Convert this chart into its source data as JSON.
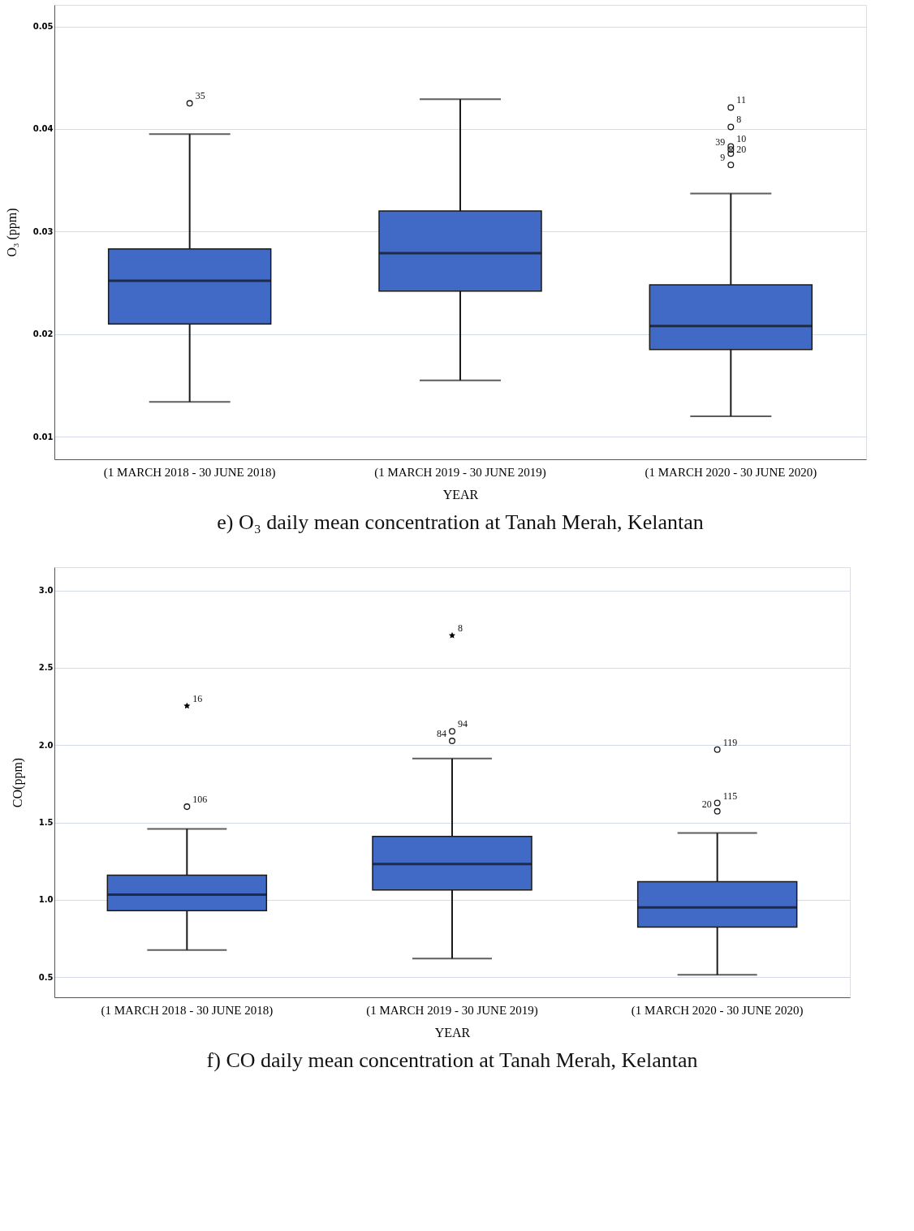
{
  "chart_data": [
    {
      "type": "box",
      "title": "e) O₃ daily mean concentration at Tanah Merah, Kelantan",
      "xlabel": "YEAR",
      "ylabel": "O₃ (ppm)",
      "categories": [
        "(1 MARCH 2018 - 30 JUNE 2018)",
        "(1 MARCH 2019 - 30 JUNE 2019)",
        "(1 MARCH 2020 - 30 JUNE 2020)"
      ],
      "ylim": [
        0.0078,
        0.0521
      ],
      "yticks": [
        0.01,
        0.02,
        0.03,
        0.04,
        0.05
      ],
      "grid": "y",
      "series": [
        {
          "type": "box",
          "color": "#4169c6",
          "boxes": [
            {
              "low": 0.0134,
              "q1": 0.021,
              "median": 0.0252,
              "q3": 0.0283,
              "high": 0.0395
            },
            {
              "low": 0.0155,
              "q1": 0.0242,
              "median": 0.0279,
              "q3": 0.032,
              "high": 0.0429
            },
            {
              "low": 0.012,
              "q1": 0.0185,
              "median": 0.0208,
              "q3": 0.0248,
              "high": 0.0337
            }
          ]
        },
        {
          "type": "scatter",
          "marker": "circle",
          "color": "#1a1a1a",
          "x": [
            "(1 MARCH 2018 - 30 JUNE 2018)",
            "(1 MARCH 2020 - 30 JUNE 2020)",
            "(1 MARCH 2020 - 30 JUNE 2020)",
            "(1 MARCH 2020 - 30 JUNE 2020)",
            "(1 MARCH 2020 - 30 JUNE 2020)",
            "(1 MARCH 2020 - 30 JUNE 2020)",
            "(1 MARCH 2020 - 30 JUNE 2020)"
          ],
          "values": [
            0.0425,
            0.0421,
            0.0402,
            0.0383,
            0.038,
            0.0376,
            0.0365
          ]
        }
      ],
      "annotations": [
        {
          "text": "35",
          "x": "(1 MARCH 2018 - 30 JUNE 2018)",
          "y": 0.0425
        },
        {
          "text": "11",
          "x": "(1 MARCH 2020 - 30 JUNE 2020)",
          "y": 0.0421
        },
        {
          "text": "8",
          "x": "(1 MARCH 2020 - 30 JUNE 2020)",
          "y": 0.0402
        },
        {
          "text": "10",
          "x": "(1 MARCH 2020 - 30 JUNE 2020)",
          "y": 0.0383
        },
        {
          "text": "39",
          "x": "(1 MARCH 2020 - 30 JUNE 2020)",
          "y": 0.038
        },
        {
          "text": "20",
          "x": "(1 MARCH 2020 - 30 JUNE 2020)",
          "y": 0.0376
        },
        {
          "text": "9",
          "x": "(1 MARCH 2020 - 30 JUNE 2020)",
          "y": 0.0365
        }
      ]
    },
    {
      "type": "box",
      "title": "f) CO daily mean concentration at Tanah Merah, Kelantan",
      "xlabel": "YEAR",
      "ylabel": "CO(ppm)",
      "categories": [
        "(1 MARCH 2018 - 30 JUNE 2018)",
        "(1 MARCH 2019 - 30 JUNE 2019)",
        "(1 MARCH 2020 - 30 JUNE 2020)"
      ],
      "ylim": [
        0.37,
        3.15
      ],
      "yticks": [
        {
          "value": 0.5,
          "label": "0.5"
        },
        {
          "value": 1,
          "label": "1.0"
        },
        {
          "value": 1.5,
          "label": "1.5"
        },
        {
          "value": 2,
          "label": "2.0"
        },
        {
          "value": 2.5,
          "label": "2.5"
        },
        {
          "value": 3,
          "label": "3.0"
        }
      ],
      "grid": "y",
      "series": [
        {
          "type": "box",
          "color": "#4169c6",
          "boxes": [
            {
              "low": 0.676,
              "q1": 0.93,
              "median": 1.034,
              "q3": 1.16,
              "high": 1.459
            },
            {
              "low": 0.62,
              "q1": 1.064,
              "median": 1.232,
              "q3": 1.41,
              "high": 1.913
            },
            {
              "low": 0.515,
              "q1": 0.824,
              "median": 0.951,
              "q3": 1.118,
              "high": 1.432
            }
          ]
        },
        {
          "type": "scatter",
          "marker": "circle",
          "color": "#1a1a1a",
          "x": [
            "(1 MARCH 2018 - 30 JUNE 2018)",
            "(1 MARCH 2019 - 30 JUNE 2019)",
            "(1 MARCH 2019 - 30 JUNE 2019)",
            "(1 MARCH 2020 - 30 JUNE 2020)",
            "(1 MARCH 2020 - 30 JUNE 2020)",
            "(1 MARCH 2020 - 30 JUNE 2020)"
          ],
          "values": [
            1.602,
            2.089,
            2.027,
            1.971,
            1.626,
            1.572
          ]
        },
        {
          "type": "scatter",
          "marker": "star",
          "color": "#000000",
          "x": [
            "(1 MARCH 2018 - 30 JUNE 2018)",
            "(1 MARCH 2019 - 30 JUNE 2019)"
          ],
          "values": [
            2.254,
            2.709
          ]
        }
      ],
      "annotations": [
        {
          "text": "16",
          "x": "(1 MARCH 2018 - 30 JUNE 2018)",
          "y": 2.254
        },
        {
          "text": "106",
          "x": "(1 MARCH 2018 - 30 JUNE 2018)",
          "y": 1.602
        },
        {
          "text": "8",
          "x": "(1 MARCH 2019 - 30 JUNE 2019)",
          "y": 2.709
        },
        {
          "text": "94",
          "x": "(1 MARCH 2019 - 30 JUNE 2019)",
          "y": 2.089
        },
        {
          "text": "84",
          "x": "(1 MARCH 2019 - 30 JUNE 2019)",
          "y": 2.027
        },
        {
          "text": "119",
          "x": "(1 MARCH 2020 - 30 JUNE 2020)",
          "y": 1.971
        },
        {
          "text": "115",
          "x": "(1 MARCH 2020 - 30 JUNE 2020)",
          "y": 1.626
        },
        {
          "text": "20",
          "x": "(1 MARCH 2020 - 30 JUNE 2020)",
          "y": 1.572
        }
      ]
    }
  ]
}
